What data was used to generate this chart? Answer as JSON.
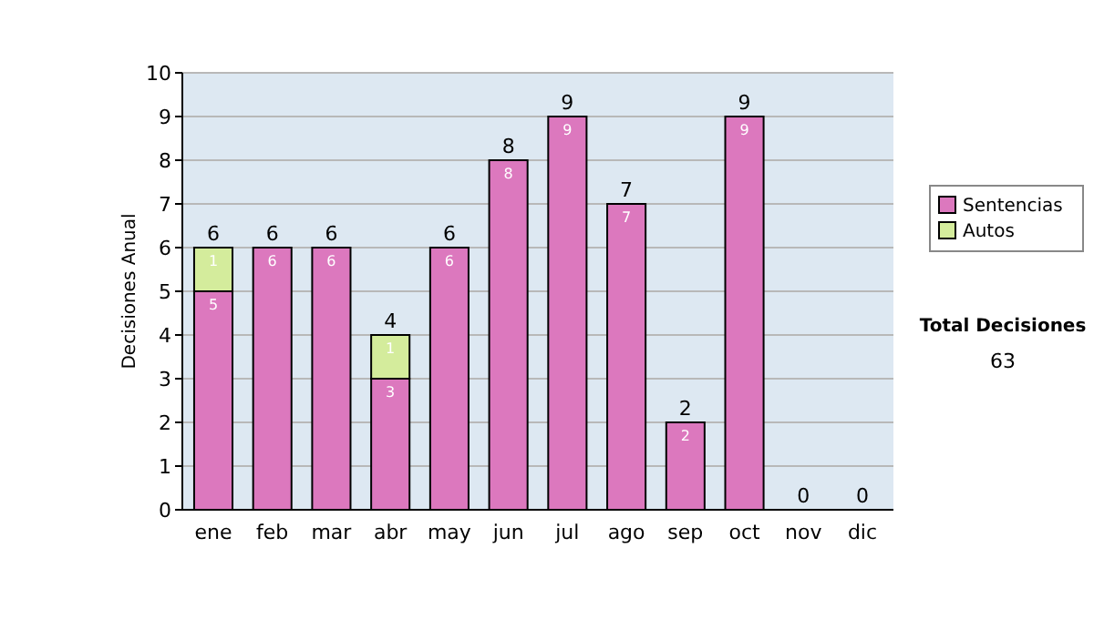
{
  "chart_data": {
    "type": "bar",
    "stacked": true,
    "ylabel": "Decisiones Anual",
    "categories": [
      "ene",
      "feb",
      "mar",
      "abr",
      "may",
      "jun",
      "jul",
      "ago",
      "sep",
      "oct",
      "nov",
      "dic"
    ],
    "series": [
      {
        "name": "Sentencias",
        "color": "#dc78be",
        "values": [
          5,
          6,
          6,
          3,
          6,
          8,
          9,
          7,
          2,
          9,
          0,
          0
        ],
        "value_labels": [
          "5",
          "6",
          "6",
          "3",
          "6",
          "8",
          "9",
          "7",
          "2",
          "9",
          null,
          null
        ]
      },
      {
        "name": "Autos",
        "color": "#d4ec9c",
        "values": [
          1,
          0,
          0,
          1,
          0,
          0,
          0,
          0,
          0,
          0,
          0,
          0
        ],
        "value_labels": [
          "1",
          null,
          null,
          "1",
          null,
          null,
          null,
          null,
          null,
          null,
          null,
          null
        ]
      }
    ],
    "totals": [
      "6",
      "6",
      "6",
      "4",
      "6",
      "8",
      "9",
      "7",
      "2",
      "9",
      "0",
      "0"
    ],
    "ylim": [
      0,
      10
    ],
    "yticks": [
      0,
      1,
      2,
      3,
      4,
      5,
      6,
      7,
      8,
      9,
      10
    ],
    "grid": "y",
    "legend": "right",
    "annotations": [
      "Total Decisiones",
      "63"
    ]
  }
}
